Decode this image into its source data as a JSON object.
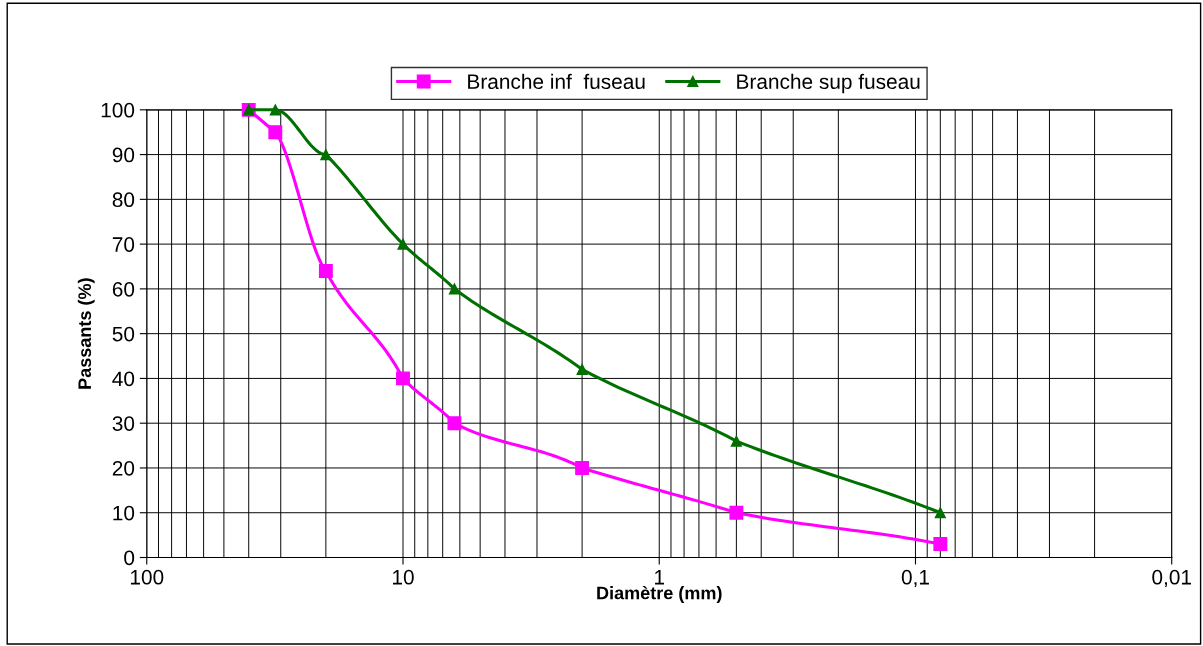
{
  "chart_data": {
    "type": "line",
    "xlabel": "Diamètre (mm)",
    "ylabel": "Passants (%)",
    "x": [
      40,
      31.5,
      20,
      10,
      6.3,
      2,
      0.5,
      0.08
    ],
    "series": [
      {
        "name": "Branche inf  fuseau",
        "color": "#ff00ff",
        "marker": "square",
        "values": [
          100,
          95,
          64,
          40,
          30,
          20,
          10,
          3
        ]
      },
      {
        "name": "Branche sup fuseau",
        "color": "#007000",
        "marker": "triangle",
        "values": [
          100,
          100,
          90,
          70,
          60,
          42,
          26,
          10
        ]
      }
    ],
    "log": "x",
    "xlim": [
      100,
      0.01
    ],
    "xticks": [
      100,
      10,
      1,
      {
        "value": 0.1,
        "label": "0,1"
      },
      {
        "value": 0.01,
        "label": "0,01"
      }
    ],
    "ylim": [
      0,
      100
    ],
    "yticks": [
      0,
      10,
      20,
      30,
      40,
      50,
      60,
      70,
      80,
      90,
      100
    ],
    "grid": true,
    "legend": "top",
    "line_style": "solid"
  }
}
